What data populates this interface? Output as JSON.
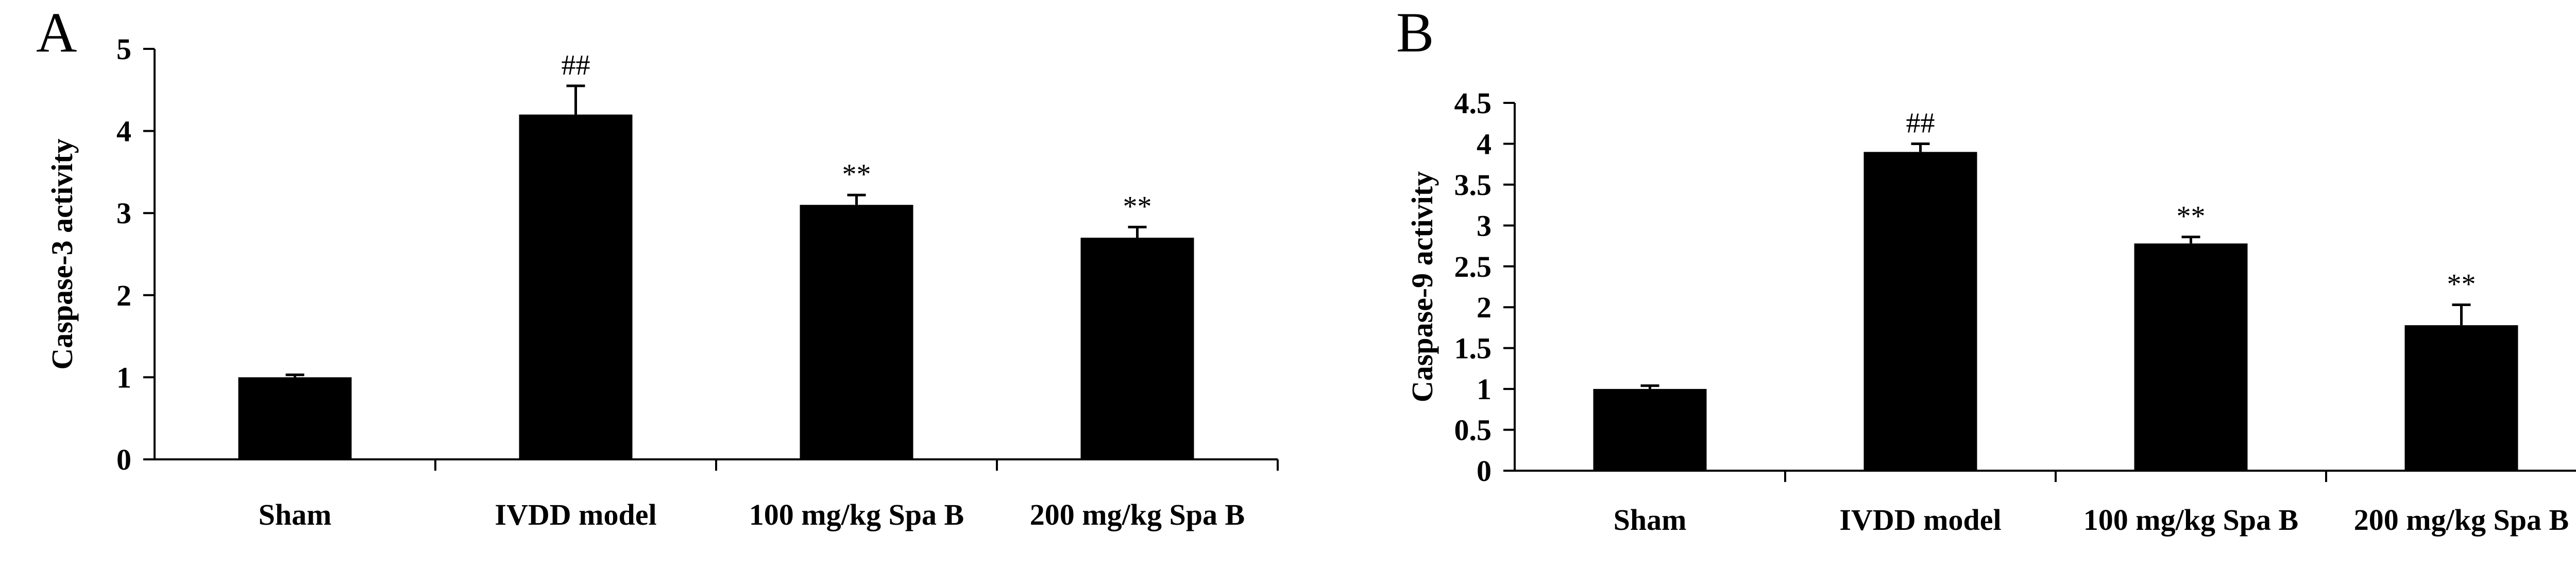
{
  "chart_data": [
    {
      "panel": "A",
      "type": "bar",
      "categories": [
        "Sham",
        "IVDD model",
        "100 mg/kg Spa B",
        "200 mg/kg Spa B"
      ],
      "values": [
        1.0,
        4.2,
        3.1,
        2.7
      ],
      "errors": [
        0.03,
        0.35,
        0.12,
        0.13
      ],
      "annotations": [
        "",
        "##",
        "**",
        "**"
      ],
      "ylabel": "Caspase-3 activity",
      "xlabel": "",
      "ylim": [
        0,
        5
      ],
      "yticks": [
        "0",
        "1",
        "2",
        "3",
        "4",
        "5"
      ],
      "bar_color": "#000000",
      "grid": false
    },
    {
      "panel": "B",
      "type": "bar",
      "categories": [
        "Sham",
        "IVDD model",
        "100 mg/kg Spa B",
        "200 mg/kg Spa B"
      ],
      "values": [
        1.0,
        3.9,
        2.78,
        1.78
      ],
      "errors": [
        0.04,
        0.1,
        0.08,
        0.25
      ],
      "annotations": [
        "",
        "##",
        "**",
        "**"
      ],
      "ylabel": "Caspase-9 activity",
      "xlabel": "",
      "ylim": [
        0,
        4.5
      ],
      "yticks": [
        "0",
        "0.5",
        "1",
        "1.5",
        "2",
        "2.5",
        "3",
        "3.5",
        "4",
        "4.5"
      ],
      "bar_color": "#000000",
      "grid": false
    }
  ]
}
